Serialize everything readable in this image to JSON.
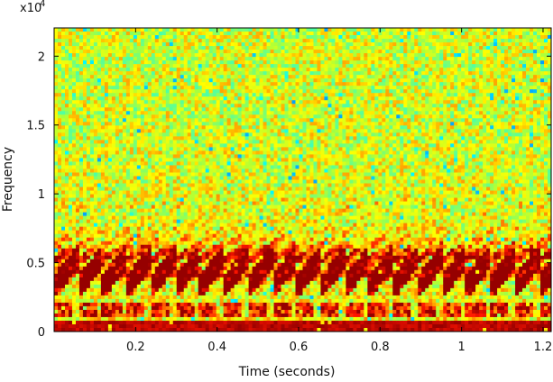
{
  "chart_data": {
    "type": "heatmap",
    "title": "",
    "xlabel": "Time (seconds)",
    "ylabel": "Frequency",
    "y_multiplier_label": "x10",
    "y_multiplier_exponent": "4",
    "xlim": [
      0,
      1.22
    ],
    "ylim": [
      0,
      22050
    ],
    "x_ticks": [
      {
        "value": 0.2,
        "label": "0.2"
      },
      {
        "value": 0.4,
        "label": "0.4"
      },
      {
        "value": 0.6,
        "label": "0.6"
      },
      {
        "value": 0.8,
        "label": "0.8"
      },
      {
        "value": 1.0,
        "label": "1"
      },
      {
        "value": 1.2,
        "label": "1.2"
      }
    ],
    "y_ticks": [
      {
        "value": 0,
        "label": "0"
      },
      {
        "value": 5000,
        "label": "0.5"
      },
      {
        "value": 10000,
        "label": "1"
      },
      {
        "value": 15000,
        "label": "1.5"
      },
      {
        "value": 20000,
        "label": "2"
      }
    ],
    "colormap": "jet",
    "colors": {
      "low": "#00ffff",
      "mid": "#ffff00",
      "high": "#ff0000",
      "peak": "#a00000",
      "axis": "#000000"
    },
    "note_period_seconds": 0.0595,
    "note_count": 20,
    "grid": false,
    "legend": "none"
  }
}
